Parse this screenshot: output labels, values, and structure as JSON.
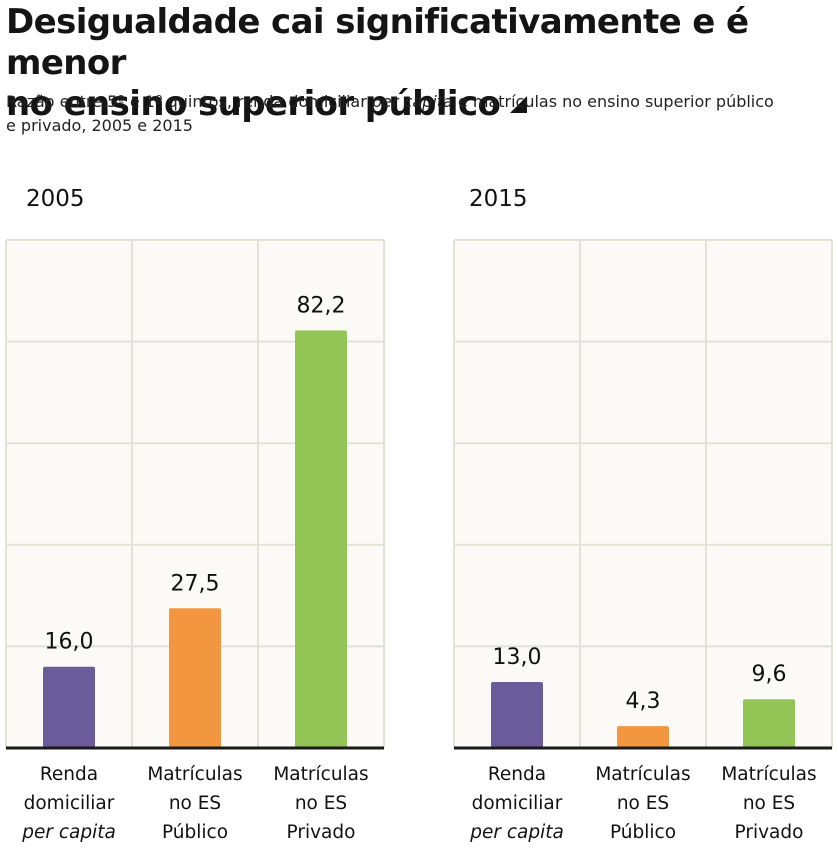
{
  "title_lines": [
    "Desigualdade cai significativamente e é menor",
    "no ensino superior público"
  ],
  "subtitle": {
    "before": "Razão entre 5º e 1º quintos, renda domiciliar ",
    "italic": "per capita",
    "after": " e matrículas no ensino superior público",
    "line2": "e privado, 2005 e 2015"
  },
  "categories": [
    {
      "lines": [
        "Renda",
        "domiciliar"
      ],
      "italic_line": "per capita"
    },
    {
      "lines": [
        "Matrículas",
        "no ES",
        "Público"
      ],
      "italic_line": ""
    },
    {
      "lines": [
        "Matrículas",
        "no ES",
        "Privado"
      ],
      "italic_line": ""
    }
  ],
  "colors": {
    "renda": "#6a5b9a",
    "publico": "#f39640",
    "privado": "#93c556",
    "grid": "#e6e1d6",
    "axis": "#1a1a1a"
  },
  "chart_data": [
    {
      "type": "bar",
      "title": "2005",
      "categories": [
        "Renda domiciliar per capita",
        "Matrículas no ES Público",
        "Matrículas no ES Privado"
      ],
      "values": [
        16.0,
        27.5,
        82.2
      ],
      "value_labels": [
        "16,0",
        "27,5",
        "82,2"
      ],
      "ylim": [
        0,
        100
      ],
      "grid": true
    },
    {
      "type": "bar",
      "title": "2015",
      "categories": [
        "Renda domiciliar per capita",
        "Matrículas no ES Público",
        "Matrículas no ES Privado"
      ],
      "values": [
        13.0,
        4.3,
        9.6
      ],
      "value_labels": [
        "13,0",
        "4,3",
        "9,6"
      ],
      "ylim": [
        0,
        100
      ],
      "grid": true
    }
  ]
}
